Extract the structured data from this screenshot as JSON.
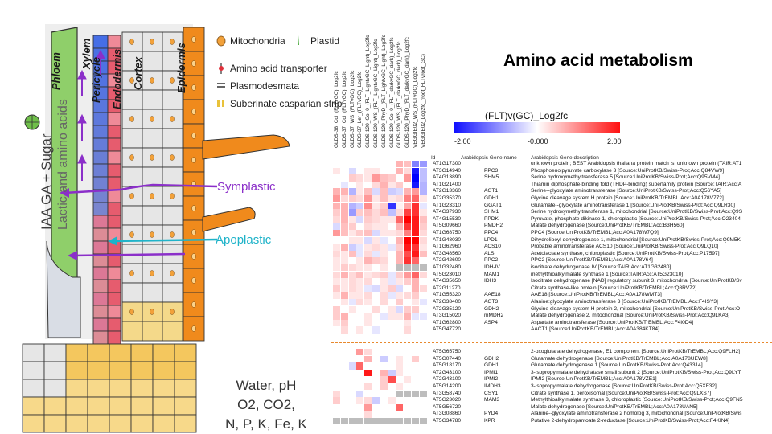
{
  "diagram": {
    "tissue_labels": [
      "Phloem",
      "Xylem",
      "Pericycle",
      "Endodermis",
      "Cortex",
      "Epidermis"
    ],
    "stele_text": "IAA GA + Sugar",
    "stele_text2": "Lactic and amino acids",
    "symplastic": "Symplastic",
    "apoplastic": "Apoplastic",
    "legend": [
      "Mitochondria",
      "Plastid",
      "Amino acid transporter",
      "Plasmodesmata",
      "Suberinate casparian strip"
    ],
    "bottom_lines": [
      "Water, pH",
      "O2, CO2,",
      "N, P, K, Fe, K"
    ],
    "colors": {
      "phloem": "#6fbf4a",
      "pericycle": "#4a6fe0",
      "endodermis": "#e65c6e",
      "cortex": "#e6e6e6",
      "epidermis": "#f08a1c",
      "mitochondria": "#f2a13a",
      "symplastic": "#8b2fc9",
      "apoplastic": "#1fb3c9"
    }
  },
  "heatmap": {
    "title": "Amino acid metabolism",
    "scale_title": "(FLT)v(GC)_Log2fc",
    "scale_ticks": [
      "-2.00",
      "-0.000",
      "2.00"
    ],
    "scale_colors": {
      "low": "#1010ff",
      "mid": "#ffffff",
      "high": "#ff1010",
      "missing": "#bdbdbd"
    },
    "column_headers": [
      "GLDS-38_Col_(FLTvGC)_Log2fc",
      "GLDS-37_Col_(FLTvGC)_Log2fc",
      "GLDS-37_WS_(FLTvGC)_Log2fc",
      "GLDS-37_Ler_(FLTvGC)_Log2fc",
      "GLDS-120_Col-0_(FLT_LightvGC_Light)_Log2fc",
      "GLDS-120_WS_(FLT_LightvGC_Light)_Log2fc",
      "GLDS-120_PhyD_(FLT_LightvGC_Light)_Log2fc",
      "GLDS-120_Col-0_(FLT_darkvGC_dark)_Log2fc",
      "GLDS-120_WS_(FLT_darkvGC_dark)_Log2fc",
      "GLDS-120_PhyD_(FLT_darkvGC_dark)_Log2fc",
      "VEGGIE02_WS_(FLTvGC)_Log2fc",
      "VEGGIE02_Log2fc_(root_FLTvroot_GC)"
    ],
    "table_headers": {
      "id": "Id",
      "name": "Arabidopsis Gene name",
      "desc": "Arabidopsis Gene description"
    },
    "group1": [
      {
        "id": "AT1G17300",
        "name": "",
        "desc": "unknown protein; BEST Arabidopsis thaliana protein match is: unknown protein (TAIR:AT1"
      },
      {
        "id": "AT3G14940",
        "name": "PPC3",
        "desc": "Phosphoenolpyruvate carboxylase 3 [Source:UniProtKB/Swiss-Prot;Acc:Q84VW9]"
      },
      {
        "id": "AT4G13890",
        "name": "SHM5",
        "desc": "Serine hydroxymethyltransferase 5 [Source:UniProtKB/Swiss-Prot;Acc:Q95VM4]"
      },
      {
        "id": "AT1G21400",
        "name": "",
        "desc": "Thiamin diphosphate-binding fold (THDP-binding) superfamily protein [Source:TAIR;Acc:A"
      },
      {
        "id": "AT2G13360",
        "name": "AGT1",
        "desc": "Serine--glyoxylate aminotransferase [Source:UniProtKB/Swiss-Prot;Acc:Q56YA5]"
      },
      {
        "id": "AT2G35370",
        "name": "GDH1",
        "desc": "Glycine cleavage system H protein [Source:UniProtKB/TrEMBL;Acc:A0A178V772]"
      },
      {
        "id": "AT1G23310",
        "name": "GGAT1",
        "desc": "Glutamate--glyoxylate aminotransferase 1 [Source:UniProtKB/Swiss-Prot;Acc:Q9LR30]"
      },
      {
        "id": "AT4G37930",
        "name": "SHM1",
        "desc": "Serine hydroxymethyltransferase 1, mitochondrial [Source:UniProtKB/Swiss-Prot;Acc:Q9S"
      },
      {
        "id": "AT4G15530",
        "name": "PPDK",
        "desc": "Pyruvate, phosphate dikinase 1, chloroplastic [Source:UniProtKB/Swiss-Prot;Acc:O23404"
      },
      {
        "id": "AT5G09660",
        "name": "PMDH2",
        "desc": "Malate dehydrogenase [Source:UniProtKB/TrEMBL;Acc:B3H560]"
      },
      {
        "id": "AT1G68750",
        "name": "PPC4",
        "desc": "PPC4 [Source:UniProtKB/TrEMBL;Acc:A0A178W7Q9]"
      },
      {
        "id": "AT1G48030",
        "name": "LPD1",
        "desc": "Dihydrolipoyl dehydrogenase 1, mitochondrial [Source:UniProtKB/Swiss-Prot;Acc:Q9M5K"
      },
      {
        "id": "AT1G62960",
        "name": "ACS10",
        "desc": "Probable aminotransferase ACS10 [Source:UniProtKB/Swiss-Prot;Acc:Q9LQ10]"
      },
      {
        "id": "AT3G48560",
        "name": "ALS",
        "desc": "Acetolactate synthase, chloroplastic [Source:UniProtKB/Swiss-Prot;Acc:P17597]"
      },
      {
        "id": "AT2G42600",
        "name": "PPC2",
        "desc": "PPC2 [Source:UniProtKB/TrEMBL;Acc:A0A178V64]"
      },
      {
        "id": "AT1G32480",
        "name": "IDH-IV",
        "desc": "isocitrate dehydrogenase IV [Source:TAIR;Acc:AT1G32480]"
      },
      {
        "id": "AT5G23010",
        "name": "MAM1",
        "desc": "methylthioalkylmalate synthase 1 [Source:TAIR;Acc:AT5G23010]"
      },
      {
        "id": "AT4G35650",
        "name": "IDH3",
        "desc": "Isocitrate dehydrogenase [NAD] regulatory subunit 3, mitochondrial [Source:UniProtKB/Sv"
      },
      {
        "id": "AT2G11270",
        "name": "",
        "desc": "Citrate synthase-like protein [Source:UniProtKB/TrEMBL;Acc:Q8RV72]"
      },
      {
        "id": "AT1G55320",
        "name": "AAE18",
        "desc": "AAE18 [Source:UniProtKB/TrEMBL;Acc:A0A178WMT3]"
      },
      {
        "id": "AT2G38400",
        "name": "AGT3",
        "desc": "Alanine:glyoxylate aminotransferase 3 [Source:UniProtKB/TrEMBL;Acc:F4ISY3]"
      },
      {
        "id": "AT2G35120",
        "name": "GDH2",
        "desc": "Glycine cleavage system H protein 2, mitochondrial [Source:UniProtKB/Swiss-Prot;Acc:O"
      },
      {
        "id": "AT3G15020",
        "name": "mMDH2",
        "desc": "Malate dehydrogenase 2, mitochondrial [Source:UniProtKB/Swiss-Prot;Acc:Q9LKA3]"
      },
      {
        "id": "AT1G62800",
        "name": "ASP4",
        "desc": "Aspartate aminotransferase [Source:UniProtKB/TrEMBL;Acc:F4I0D4]"
      },
      {
        "id": "AT5G47720",
        "name": "",
        "desc": "AACT1 [Source:UniProtKB/TrEMBL;Acc:A0A384KT84]"
      }
    ],
    "group2": [
      {
        "id": "AT5G65750",
        "name": "",
        "desc": "2-oxoglutarate dehydrogenase, E1 component [Source:UniProtKB/TrEMBL;Acc:Q9FLH2]"
      },
      {
        "id": "AT5G07440",
        "name": "GDH2",
        "desc": "Glutamate dehydrogenase [Source:UniProtKB/TrEMBL;Acc:A0A178UEW8]"
      },
      {
        "id": "AT5G18170",
        "name": "GDH1",
        "desc": "Glutamate dehydrogenase 1 [Source:UniProtKB/Swiss-Prot;Acc:Q43314]"
      },
      {
        "id": "AT2G43100",
        "name": "IPMI1",
        "desc": "3-isopropylmalate dehydratase small subunit 2 [Source:UniProtKB/Swiss-Prot;Acc:Q9LYT"
      },
      {
        "id": "AT2G43100",
        "name": "IPMI2",
        "desc": "IPMI2 [Source:UniProtKB/TrEMBL;Acc:A0A178VZE1]"
      },
      {
        "id": "AT5G14200",
        "name": "IMDH3",
        "desc": "3-isopropylmalate dehydrogenase [Source:UniProtKB/Swiss-Prot;Acc:Q5XF32]"
      },
      {
        "id": "AT3G58740",
        "name": "CSY1",
        "desc": "Citrate synthase 1, peroxisomal [Source:UniProtKB/Swiss-Prot;Acc:Q9LXS7]"
      },
      {
        "id": "AT5G23020",
        "name": "MAM3",
        "desc": "Methylthioalkylmalate synthase 3, chloroplastic [Source:UniProtKB/Swiss-Prot;Acc:Q9FN5"
      },
      {
        "id": "AT5G56720",
        "name": "",
        "desc": "Malate dehydrogenase [Source:UniProtKB/TrEMBL;Acc:A0A178UAN5]"
      },
      {
        "id": "AT3G08860",
        "name": "PYD4",
        "desc": "Alanine--glyoxylate aminotransferase 2 homolog 3, mitochondrial [Source:UniProtKB/Swis"
      },
      {
        "id": "AT5G34780",
        "name": "KPR",
        "desc": "Putative 2-dehydropantoate 2-reductase [Source:UniProtKB/Swiss-Prot;Acc:F4KIN4]"
      }
    ],
    "matrix1": [
      [
        0,
        0,
        0,
        0,
        0,
        0,
        0,
        0,
        0.6,
        0.5,
        -1,
        -0.8
      ],
      [
        0.2,
        0,
        -0.3,
        0,
        0.2,
        0.2,
        0,
        0,
        0.6,
        0.3,
        -1.8,
        -0.5
      ],
      [
        0,
        0,
        0.4,
        0.3,
        0.2,
        0.8,
        0.5,
        0.4,
        0,
        0.8,
        -2,
        -0.5
      ],
      [
        0,
        -0.2,
        0,
        0.2,
        0,
        0.3,
        0.6,
        0.2,
        0.4,
        0,
        -1.8,
        -0.6
      ],
      [
        0.6,
        0.6,
        -0.6,
        0.2,
        0.5,
        -0.3,
        0.5,
        -0.4,
        -0.3,
        0.6,
        0.8,
        -0.6
      ],
      [
        0.8,
        0.3,
        0.4,
        0.3,
        0.8,
        0.2,
        0.5,
        0.2,
        0.3,
        1,
        1.2,
        0.2
      ],
      [
        0.6,
        0.6,
        -0.6,
        -0.4,
        0.9,
        0.2,
        0.4,
        -1.6,
        0.1,
        0.7,
        1.6,
        -0.2
      ],
      [
        0.4,
        0.6,
        -0.8,
        0.4,
        0.5,
        0.3,
        0.5,
        -0.5,
        0.3,
        1.5,
        1.6,
        0.2
      ],
      [
        0.3,
        0.6,
        0.2,
        -0.3,
        0.4,
        0.3,
        0.2,
        0.2,
        1.2,
        2,
        1.8,
        0.5
      ],
      [
        -0.3,
        0.5,
        0.4,
        0,
        0.3,
        0.2,
        0.2,
        0,
        0.6,
        1.6,
        1.8,
        0.4
      ],
      [
        0.8,
        0.5,
        0.2,
        0.4,
        0.5,
        -0.3,
        0.2,
        0.2,
        0.3,
        1,
        1.8,
        0.3
      ],
      [
        0,
        0,
        0.2,
        0.2,
        -0.3,
        0.2,
        -0.2,
        0,
        0.6,
        2,
        2,
        0.3
      ],
      [
        0.2,
        0.6,
        -0.4,
        -0.2,
        0.2,
        0.3,
        0.2,
        -0.2,
        0.4,
        1.8,
        1.6,
        0.2
      ],
      [
        0.3,
        0.2,
        0.5,
        -0.2,
        0.3,
        -0.2,
        0.2,
        0,
        0.6,
        1.4,
        1.8,
        0.5
      ],
      [
        0.2,
        0.2,
        0,
        0.2,
        0.6,
        0.4,
        0.3,
        0,
        0.6,
        1.6,
        1.2,
        0
      ],
      [
        0.2,
        0.4,
        0.3,
        0.2,
        0.2,
        0,
        0.2,
        0,
        null,
        null,
        null,
        null
      ],
      [
        0.3,
        0.6,
        0.3,
        0.5,
        0.2,
        0.3,
        0.4,
        -0.2,
        0.4,
        0.8,
        1.2,
        0.3
      ],
      [
        0.2,
        0.2,
        0.3,
        0.2,
        0.3,
        0,
        0.2,
        -0.2,
        0.2,
        0.4,
        0.6,
        0
      ],
      [
        0.4,
        0.2,
        0.3,
        0.2,
        -0.2,
        -0.3,
        0.2,
        0.4,
        -0.3,
        0,
        0.6,
        0.3
      ],
      [
        0.2,
        0.6,
        0.2,
        0.2,
        0.3,
        0,
        0.3,
        -0.2,
        0.2,
        0.3,
        0.4,
        0
      ],
      [
        0,
        0.2,
        -0.2,
        0.3,
        0.2,
        0,
        0.3,
        0,
        0.4,
        0,
        0.2,
        -0.2
      ],
      [
        0.4,
        0,
        0.2,
        0,
        0,
        0.3,
        0,
        0.2,
        -0.3,
        0.4,
        0.4,
        0
      ],
      [
        0.4,
        0.6,
        0,
        0,
        0.2,
        0,
        -0.2,
        0.2,
        0.2,
        0.6,
        -0.2,
        -0.2
      ],
      [
        0.2,
        0.4,
        0,
        0,
        0.2,
        0,
        0,
        0,
        0,
        0.2,
        0,
        0
      ],
      [
        0,
        0.3,
        0,
        0.2,
        0,
        -0.2,
        0,
        0,
        0,
        0.3,
        0,
        0
      ]
    ],
    "matrix2": [
      [
        0,
        0,
        0,
        0.8,
        0.3,
        0,
        0,
        0,
        0,
        0,
        0,
        0
      ],
      [
        0,
        0,
        0,
        0,
        0.6,
        0,
        -0.4,
        0,
        0.2,
        0,
        0.4,
        0
      ],
      [
        0,
        0,
        -0.3,
        1.2,
        0,
        0,
        0,
        0,
        0.2,
        0,
        0,
        0
      ],
      [
        0,
        0,
        0,
        0,
        1.8,
        0,
        0.6,
        -0.4,
        0.2,
        0,
        0,
        0
      ],
      [
        0,
        0,
        0,
        0,
        0,
        0,
        0.4,
        1.4,
        0,
        0.2,
        0,
        0
      ],
      [
        0,
        0,
        0,
        0,
        0.3,
        0,
        0.4,
        0,
        0.2,
        0,
        0,
        0
      ],
      [
        0.3,
        0,
        0,
        -0.3,
        0,
        0,
        0,
        0,
        null,
        null,
        null,
        null
      ],
      [
        0.4,
        0,
        0,
        0.2,
        0.3,
        -0.4,
        0,
        0.2,
        0,
        0,
        0,
        0
      ],
      [
        0,
        0,
        0,
        0,
        0.8,
        0,
        0,
        0,
        1.2,
        0,
        0,
        0
      ],
      [
        0,
        0,
        0,
        0,
        0.3,
        0,
        0,
        0,
        0,
        0,
        0,
        0
      ],
      [
        null,
        null,
        null,
        null,
        null,
        null,
        null,
        null,
        null,
        null,
        null,
        null
      ]
    ]
  }
}
